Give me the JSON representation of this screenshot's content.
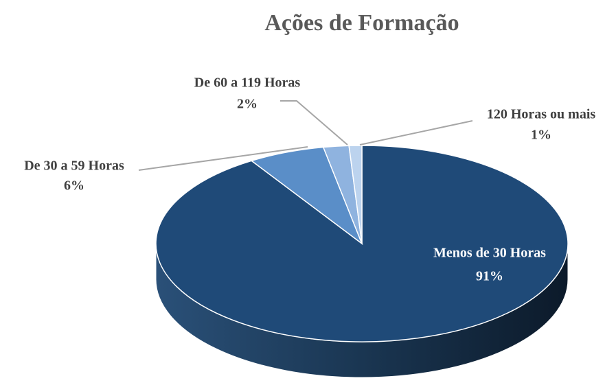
{
  "chart_data": {
    "type": "pie",
    "title": "Ações de Formação",
    "categories": [
      "Menos de 30 Horas",
      "De 30 a 59 Horas",
      "De 60 a 119 Horas",
      "120 Horas ou mais"
    ],
    "values": [
      91,
      6,
      2,
      1
    ],
    "value_labels": [
      "91%",
      "6%",
      "2%",
      "1%"
    ],
    "colors": [
      "#1f4a78",
      "#5a8ec8",
      "#8fb3df",
      "#bcd3ee"
    ]
  }
}
